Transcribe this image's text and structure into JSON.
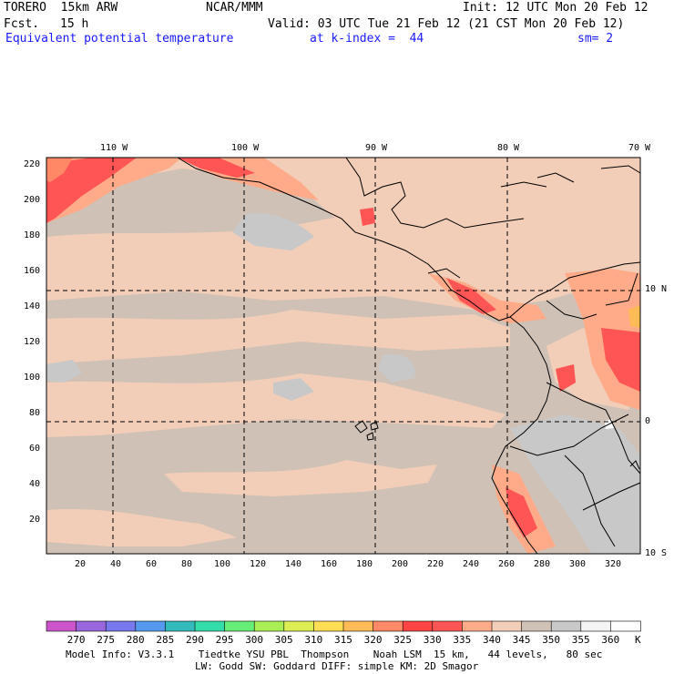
{
  "header": {
    "model": "TORERO  15km ARW",
    "org": "NCAR/MMM",
    "init": "Init: 12 UTC Mon 20 Feb 12",
    "fcst_label": "Fcst.",
    "fcst_value": "15 h",
    "valid": "Valid: 03 UTC Tue 21 Feb 12 (21 CST Mon 20 Feb 12)",
    "field": "Equivalent potential temperature",
    "level": "at k-index =  44",
    "smooth": "sm= 2"
  },
  "map": {
    "top_lon_labels": [
      "110 W",
      "100 W",
      "90 W",
      "80 W",
      "70 W"
    ],
    "right_lat_labels": [
      "10 N",
      "0",
      "10 S"
    ],
    "left_grid_labels": [
      "220",
      "200",
      "180",
      "160",
      "140",
      "120",
      "100",
      "80",
      "60",
      "40",
      "20"
    ],
    "bottom_grid_labels": [
      "20",
      "40",
      "60",
      "80",
      "100",
      "120",
      "140",
      "160",
      "180",
      "200",
      "220",
      "240",
      "260",
      "280",
      "300",
      "320"
    ]
  },
  "colorbar": {
    "values": [
      "270",
      "275",
      "280",
      "285",
      "290",
      "295",
      "300",
      "305",
      "310",
      "315",
      "320",
      "325",
      "330",
      "335",
      "340",
      "345",
      "350",
      "355",
      "360"
    ],
    "unit": "K",
    "colors": [
      "#cc55cc",
      "#9966dd",
      "#7777ee",
      "#5599ee",
      "#33bbbb",
      "#33ddaa",
      "#66ee77",
      "#aaee55",
      "#ddee55",
      "#ffdd55",
      "#ffbb55",
      "#ff8866",
      "#ff4444",
      "#ff5555",
      "#ffaa88",
      "#f2cdb8",
      "#d0c1b6",
      "#c8c8c8",
      "#f4f4f4",
      "#ffffff"
    ]
  },
  "footer": {
    "line1": "Model Info: V3.3.1    Tiedtke YSU PBL  Thompson    Noah LSM  15 km,   44 levels,   80 sec",
    "line2": "LW: Godd SW: Goddard DIFF: simple KM: 2D Smagor"
  }
}
